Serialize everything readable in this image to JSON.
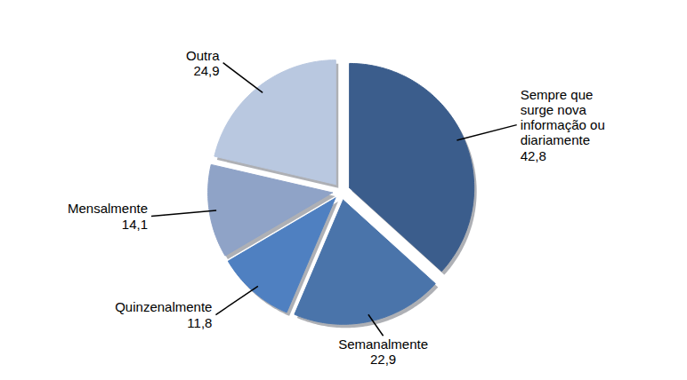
{
  "chart_data": {
    "type": "pie",
    "categories": [
      "Sempre que surge nova informação ou diariamente",
      "Semanalmente",
      "Quinzenalmente",
      "Mensalmente",
      "Outra"
    ],
    "values": [
      42.8,
      22.9,
      11.8,
      14.1,
      24.9
    ],
    "value_labels": [
      "42,8",
      "22,9",
      "11,8",
      "14,1",
      "24,9"
    ],
    "colors": [
      "#3b5d8c",
      "#4a74aa",
      "#4f80c1",
      "#8fa3c7",
      "#b9c8e0"
    ],
    "data_labels": true
  }
}
